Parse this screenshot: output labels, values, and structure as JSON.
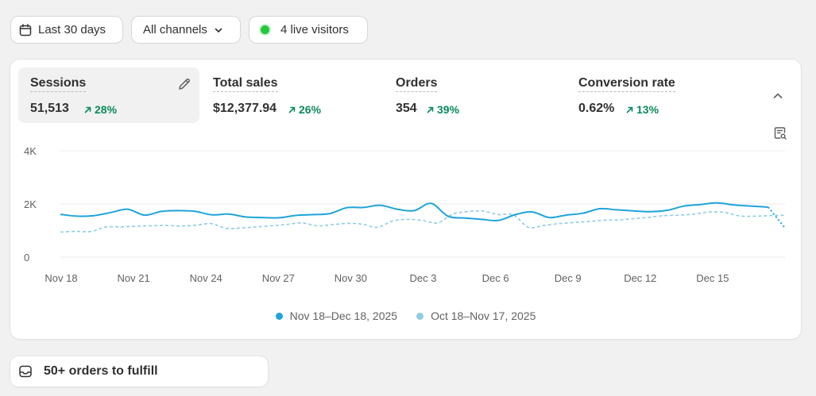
{
  "filters": {
    "date_label": "Last 30 days",
    "channels_label": "All channels",
    "live_label": "4 live visitors"
  },
  "metrics": [
    {
      "label": "Sessions",
      "value": "51,513",
      "delta": "28%",
      "active": true
    },
    {
      "label": "Total sales",
      "value": "$12,377.94",
      "delta": "26%",
      "active": false
    },
    {
      "label": "Orders",
      "value": "354",
      "delta": "39%",
      "active": false
    },
    {
      "label": "Conversion rate",
      "value": "0.62%",
      "delta": "13%",
      "active": false
    }
  ],
  "colors": {
    "current": "#1fa4d9",
    "previous": "#8fcbe5",
    "delta_up": "#0c8a5a"
  },
  "chart_data": {
    "type": "line",
    "x_ticks": [
      "Nov 18",
      "Nov 21",
      "Nov 24",
      "Nov 27",
      "Nov 30",
      "Dec 3",
      "Dec 6",
      "Dec 9",
      "Dec 12",
      "Dec 15"
    ],
    "y_ticks": [
      "4K",
      "2K",
      "0"
    ],
    "ylim": [
      0,
      4000
    ],
    "series": [
      {
        "name": "Nov 18–Dec 18, 2025",
        "style": "solid",
        "values": [
          1610,
          1540,
          1560,
          1680,
          1800,
          1580,
          1720,
          1750,
          1720,
          1590,
          1620,
          1510,
          1490,
          1480,
          1570,
          1600,
          1640,
          1860,
          1870,
          1950,
          1800,
          1750,
          2020,
          1540,
          1470,
          1420,
          1380,
          1600,
          1700,
          1490,
          1580,
          1650,
          1820,
          1780,
          1740,
          1710,
          1760,
          1920,
          1980,
          2040,
          1960,
          1920,
          1880,
          1100
        ]
      },
      {
        "name": "Oct 18–Nov 17, 2025",
        "style": "dashed",
        "values": [
          940,
          970,
          960,
          1130,
          1140,
          1160,
          1180,
          1190,
          1170,
          1200,
          1260,
          1080,
          1100,
          1140,
          1180,
          1230,
          1290,
          1180,
          1220,
          1270,
          1240,
          1120,
          1360,
          1420,
          1380,
          1290,
          1620,
          1710,
          1730,
          1600,
          1590,
          1120,
          1190,
          1260,
          1300,
          1340,
          1390,
          1400,
          1450,
          1500,
          1560,
          1580,
          1620,
          1700,
          1680,
          1550,
          1540,
          1560,
          1580
        ]
      }
    ]
  },
  "fulfill": {
    "label": "50+ orders to fulfill"
  }
}
